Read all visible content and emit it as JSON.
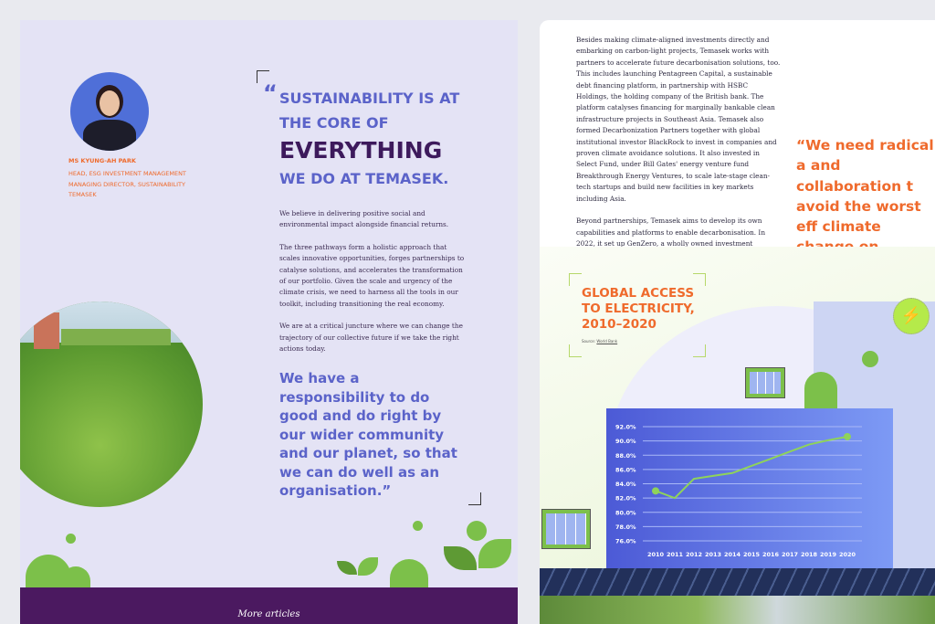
{
  "left_page": {
    "profile": {
      "name": "MS KYUNG-AH PARK",
      "title_lines": [
        "HEAD, ESG INVESTMENT MANAGEMENT",
        "MANAGING DIRECTOR, SUSTAINABILITY",
        "TEMASEK"
      ]
    },
    "headline": {
      "open_quote": "“",
      "line1": "SUSTAINABILITY IS AT",
      "line2": "THE CORE OF",
      "line3": "EVERYTHING",
      "line4": "WE DO AT TEMASEK."
    },
    "paragraphs": [
      "We believe in delivering positive social and environmental impact alongside financial returns.",
      "The three pathways form a holistic approach that scales innovative opportunities, forges partnerships to catalyse solutions, and accelerates the transformation of our portfolio. Given the scale and urgency of the climate crisis, we need to harness all the tools in our toolkit, including transitioning the real economy.",
      "We are at a critical juncture where we can change the trajectory of our collective future if we take the right actions today."
    ],
    "pull_quote": "We have a responsibility to do good and do right by our wider community and our planet, so that we can do well as an organisation.”",
    "footer": {
      "more_articles": "More articles"
    }
  },
  "right_page": {
    "paragraphs": [
      "Besides making climate-aligned investments directly and embarking on carbon-light projects, Temasek works with partners to accelerate future decarbonisation solutions, too. This includes launching Pentagreen Capital, a sustainable debt financing platform, in partnership with HSBC Holdings, the holding company of the British bank. The platform catalyses financing for marginally bankable clean infrastructure projects in Southeast Asia. Temasek also formed Decarbonization Partners together with global institutional investor BlackRock to invest in companies and proven climate avoidance solutions. It also invested in Select Fund, under Bill Gates' energy venture fund Breakthrough Energy Ventures, to scale late-stage clean-tech startups and build new facilities in key markets including Asia.",
      "Beyond partnerships, Temasek aims to develop its own capabilities and platforms to enable decarbonisation. In 2022, it set up GenZero, a wholly owned investment company designed to accelerate decarbonisation globally through investments in nature- and technology-based solutions and carbon ecosystem enablers."
    ],
    "quote": "“We need radical a and collaboration t avoid the worst eff climate change on humanity.”",
    "source_label": "Source:",
    "source_link": "World Bank"
  },
  "colors": {
    "orange": "#ef6a2c",
    "purple_blue": "#5b63c9",
    "dark_purple": "#3d1a5c",
    "footer": "#4b1960",
    "green": "#7cc04a"
  },
  "chart_data": {
    "type": "line",
    "title": "GLOBAL ACCESS TO ELECTRICITY, 2010–2020",
    "x": [
      "2010",
      "2011",
      "2012",
      "2013",
      "2014",
      "2015",
      "2016",
      "2017",
      "2018",
      "2019",
      "2020"
    ],
    "values": [
      83.0,
      82.0,
      84.7,
      85.1,
      85.5,
      86.5,
      87.5,
      88.5,
      89.5,
      90.1,
      90.6
    ],
    "yticks": [
      "92.0%",
      "90.0%",
      "88.0%",
      "86.0%",
      "84.0%",
      "82.0%",
      "80.0%",
      "78.0%",
      "76.0%"
    ],
    "ylim": [
      76,
      92
    ],
    "grid": true,
    "line_color": "#8fd35a"
  }
}
